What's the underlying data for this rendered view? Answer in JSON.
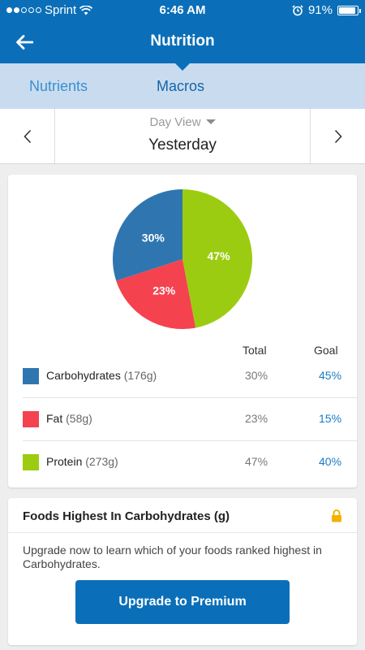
{
  "status": {
    "carrier": "Sprint",
    "time": "6:46 AM",
    "battery": "91%",
    "battery_level": 0.91,
    "signal_bars": 2
  },
  "nav": {
    "title": "Nutrition",
    "back_icon": "back-arrow-icon"
  },
  "tabs": [
    {
      "label": "Nutrients",
      "active": false
    },
    {
      "label": "Macros",
      "active": true
    }
  ],
  "date": {
    "view": "Day View",
    "label": "Yesterday"
  },
  "macros": {
    "headers": {
      "total": "Total",
      "goal": "Goal"
    },
    "rows": [
      {
        "name": "Carbohydrates",
        "grams": "(176g)",
        "total": "30%",
        "goal": "45%",
        "color": "#2f76b0"
      },
      {
        "name": "Fat",
        "grams": "(58g)",
        "total": "23%",
        "goal": "15%",
        "color": "#f5424f"
      },
      {
        "name": "Protein",
        "grams": "(273g)",
        "total": "47%",
        "goal": "40%",
        "color": "#9ccc11"
      }
    ],
    "pie": [
      {
        "label": "47%",
        "value": 47,
        "color": "#9ccc11"
      },
      {
        "label": "23%",
        "value": 23,
        "color": "#f5424f"
      },
      {
        "label": "30%",
        "value": 30,
        "color": "#2f76b0"
      }
    ]
  },
  "foods": {
    "title": "Foods Highest In Carbohydrates (g)",
    "lock_icon": "lock-icon",
    "text": "Upgrade now to learn which of your foods ranked highest in Carbohydrates.",
    "button": "Upgrade to Premium",
    "accent": "#f0b400"
  }
}
